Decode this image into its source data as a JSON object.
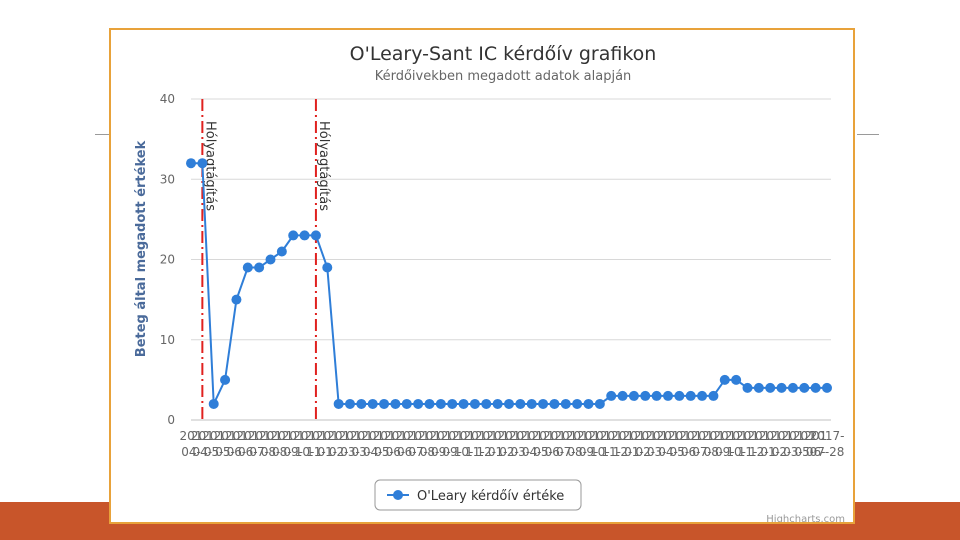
{
  "colors": {
    "series": "#2f7ed8",
    "plot_line": "#e0211f",
    "frame": "#e8a23a",
    "band": "#c8552a"
  },
  "chart_data": {
    "type": "line",
    "title": "O'Leary-Sant IC kérdőív grafikon",
    "subtitle": "Kérdőivekben megadott adatok alapján",
    "ylabel": "Beteg által megadott értékek",
    "xlabel": "",
    "ylim": [
      0,
      40
    ],
    "yticks": [
      0,
      10,
      20,
      30,
      40
    ],
    "grid": true,
    "legend_position": "bottom-center",
    "series": [
      {
        "name": "O'Leary kérdőív értéke",
        "values": [
          32,
          32,
          2,
          5,
          15,
          19,
          19,
          20,
          21,
          23,
          23,
          23,
          19,
          2,
          2,
          2,
          2,
          2,
          2,
          2,
          2,
          2,
          2,
          2,
          2,
          2,
          2,
          2,
          2,
          2,
          2,
          2,
          2,
          2,
          2,
          2,
          2,
          3,
          3,
          3,
          3,
          3,
          3,
          3,
          3,
          3,
          3,
          5,
          5,
          4,
          4,
          4,
          4,
          4,
          4,
          4,
          4
        ]
      }
    ],
    "x_labels": [
      {
        "top": "201",
        "bottom": "04-"
      },
      {
        "top": "201",
        "bottom": "04-"
      },
      {
        "top": "201",
        "bottom": "05-"
      },
      {
        "top": "201",
        "bottom": "05-"
      },
      {
        "top": "201",
        "bottom": "06-"
      },
      {
        "top": "201",
        "bottom": "06-"
      },
      {
        "top": "201",
        "bottom": "07-"
      },
      {
        "top": "201",
        "bottom": "08-"
      },
      {
        "top": "201",
        "bottom": "08-"
      },
      {
        "top": "201",
        "bottom": "09-"
      },
      {
        "top": "201",
        "bottom": "10-"
      },
      {
        "top": "201",
        "bottom": "11-"
      },
      {
        "top": "201",
        "bottom": "01-"
      },
      {
        "top": "201",
        "bottom": "02-"
      },
      {
        "top": "201",
        "bottom": "03-"
      },
      {
        "top": "201",
        "bottom": "03-"
      },
      {
        "top": "201",
        "bottom": "04-"
      },
      {
        "top": "201",
        "bottom": "05-"
      },
      {
        "top": "201",
        "bottom": "06-"
      },
      {
        "top": "201",
        "bottom": "06-"
      },
      {
        "top": "201",
        "bottom": "07-"
      },
      {
        "top": "201",
        "bottom": "08-"
      },
      {
        "top": "201",
        "bottom": "09-"
      },
      {
        "top": "201",
        "bottom": "09-"
      },
      {
        "top": "201",
        "bottom": "10-"
      },
      {
        "top": "201",
        "bottom": "11-"
      },
      {
        "top": "201",
        "bottom": "12-"
      },
      {
        "top": "201",
        "bottom": "01-"
      },
      {
        "top": "201",
        "bottom": "02-"
      },
      {
        "top": "201",
        "bottom": "03-"
      },
      {
        "top": "201",
        "bottom": "04-"
      },
      {
        "top": "201",
        "bottom": "05-"
      },
      {
        "top": "201",
        "bottom": "06-"
      },
      {
        "top": "201",
        "bottom": "07-"
      },
      {
        "top": "201",
        "bottom": "08-"
      },
      {
        "top": "201",
        "bottom": "09-"
      },
      {
        "top": "201",
        "bottom": "10-"
      },
      {
        "top": "201",
        "bottom": "11-"
      },
      {
        "top": "201",
        "bottom": "12-"
      },
      {
        "top": "201",
        "bottom": "01-"
      },
      {
        "top": "201",
        "bottom": "02-"
      },
      {
        "top": "201",
        "bottom": "03-"
      },
      {
        "top": "201",
        "bottom": "04-"
      },
      {
        "top": "201",
        "bottom": "05-"
      },
      {
        "top": "201",
        "bottom": "06-"
      },
      {
        "top": "201",
        "bottom": "07-"
      },
      {
        "top": "201",
        "bottom": "08-"
      },
      {
        "top": "201",
        "bottom": "09-"
      },
      {
        "top": "201",
        "bottom": "10-"
      },
      {
        "top": "201",
        "bottom": "11-"
      },
      {
        "top": "201",
        "bottom": "12-"
      },
      {
        "top": "201",
        "bottom": "01-"
      },
      {
        "top": "201",
        "bottom": "02-"
      },
      {
        "top": "201",
        "bottom": "03-"
      },
      {
        "top": "201",
        "bottom": "05-"
      },
      {
        "top": "201",
        "bottom": "06-"
      },
      {
        "top": "2017-",
        "bottom": "07-28"
      }
    ],
    "plot_lines": [
      {
        "x_index": 1,
        "label": "Hólyagtágítás"
      },
      {
        "x_index": 11,
        "label": "Hólyagtágítás"
      }
    ]
  },
  "credits": "Highcharts.com"
}
